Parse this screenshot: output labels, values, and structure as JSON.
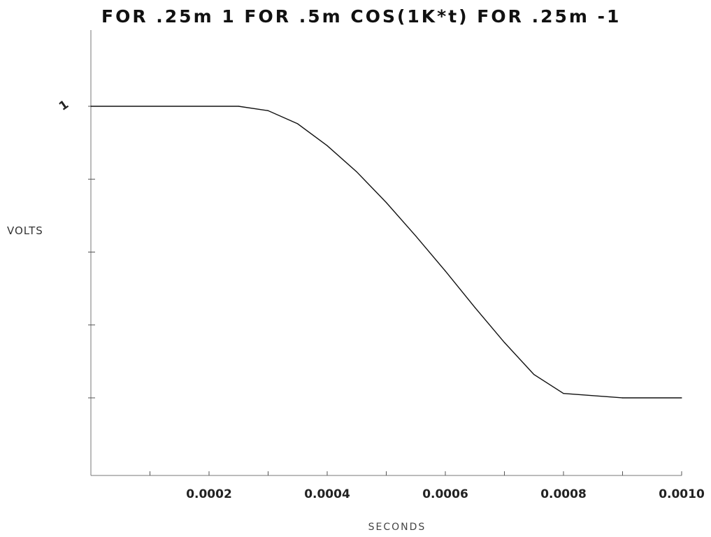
{
  "chart_data": {
    "type": "line",
    "title": "FOR .25m 1 FOR .5m COS(1K*t) FOR .25m -1",
    "xlabel": "SECONDS",
    "ylabel": "VOLTS",
    "xlim": [
      0,
      0.001
    ],
    "ylim": [
      -1.5,
      1.5
    ],
    "x_ticks": [
      0.0001,
      0.0002,
      0.0003,
      0.0004,
      0.0005,
      0.0006,
      0.0007,
      0.0008,
      0.0009,
      0.001
    ],
    "x_tick_labels": [
      {
        "value": 0.0002,
        "label": "0.0002"
      },
      {
        "value": 0.0004,
        "label": "0.0004"
      },
      {
        "value": 0.0006,
        "label": "0.0006"
      },
      {
        "value": 0.0008,
        "label": "0.0008"
      },
      {
        "value": 0.001,
        "label": "0.0010"
      }
    ],
    "y_ticks": [
      1,
      0.5,
      0,
      -0.5,
      -1
    ],
    "y_tick_labels": [
      {
        "value": 1,
        "label": "1"
      }
    ],
    "grid": false,
    "series": [
      {
        "x": [
          0,
          0.00025,
          0.0003,
          0.00035,
          0.0004,
          0.00045,
          0.0005,
          0.00055,
          0.0006,
          0.00065,
          0.0007,
          0.00075,
          0.0008,
          0.0009,
          0.001
        ],
        "y": [
          1,
          1,
          0.97,
          0.88,
          0.73,
          0.55,
          0.34,
          0.11,
          -0.13,
          -0.38,
          -0.62,
          -0.84,
          -0.97,
          -1,
          -1
        ],
        "color": "#111111"
      }
    ]
  }
}
